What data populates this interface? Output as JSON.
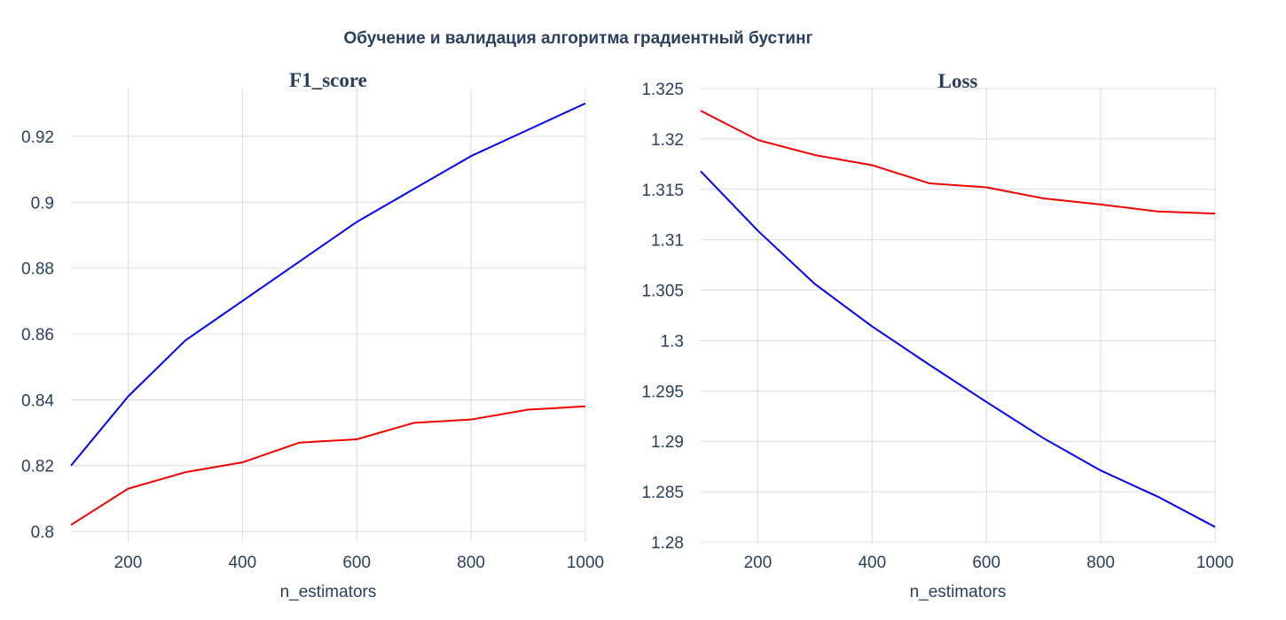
{
  "title": "Обучение и валидация алгоритма градиентный бустинг",
  "chart_data": [
    {
      "type": "line",
      "title": "F1_score",
      "xlabel": "n_estimators",
      "ylabel": "",
      "x": [
        100,
        200,
        300,
        400,
        500,
        600,
        700,
        800,
        900,
        1000
      ],
      "xlim": [
        100,
        1000
      ],
      "ylim": [
        0.7968,
        0.9345
      ],
      "xticks": [
        200,
        400,
        600,
        800,
        1000
      ],
      "xtick_labels": [
        "200",
        "400",
        "600",
        "800",
        "1000"
      ],
      "yticks": [
        0.8,
        0.82,
        0.84,
        0.86,
        0.88,
        0.9,
        0.92
      ],
      "ytick_labels": [
        "0.8",
        "0.82",
        "0.84",
        "0.86",
        "0.88",
        "0.9",
        "0.92"
      ],
      "grid": true,
      "legend": "none",
      "series": [
        {
          "color": "#0000ee",
          "values": [
            0.82,
            0.841,
            0.858,
            0.87,
            0.882,
            0.894,
            0.904,
            0.914,
            0.922,
            0.93
          ]
        },
        {
          "color": "#ee0000",
          "values": [
            0.802,
            0.813,
            0.818,
            0.821,
            0.827,
            0.828,
            0.833,
            0.834,
            0.837,
            0.838
          ]
        }
      ]
    },
    {
      "type": "line",
      "title": "Loss",
      "xlabel": "n_estimators",
      "ylabel": "",
      "x": [
        100,
        200,
        300,
        400,
        500,
        600,
        700,
        800,
        900,
        1000
      ],
      "xlim": [
        100,
        1000
      ],
      "ylim": [
        1.28,
        1.325
      ],
      "xticks": [
        200,
        400,
        600,
        800,
        1000
      ],
      "xtick_labels": [
        "200",
        "400",
        "600",
        "800",
        "1000"
      ],
      "yticks": [
        1.28,
        1.285,
        1.29,
        1.295,
        1.3,
        1.305,
        1.31,
        1.315,
        1.32,
        1.325
      ],
      "ytick_labels": [
        "1.28",
        "1.285",
        "1.29",
        "1.295",
        "1.3",
        "1.305",
        "1.31",
        "1.315",
        "1.32",
        "1.325"
      ],
      "grid": true,
      "legend": "none",
      "series": [
        {
          "color": "#0000ee",
          "values": [
            1.3168,
            1.3109,
            1.3056,
            1.3014,
            1.2976,
            1.2939,
            1.2903,
            1.2871,
            1.2845,
            1.2815
          ]
        },
        {
          "color": "#ee0000",
          "values": [
            1.3228,
            1.3199,
            1.3184,
            1.3174,
            1.3156,
            1.3152,
            1.3141,
            1.3135,
            1.3128,
            1.3126
          ]
        }
      ]
    }
  ]
}
